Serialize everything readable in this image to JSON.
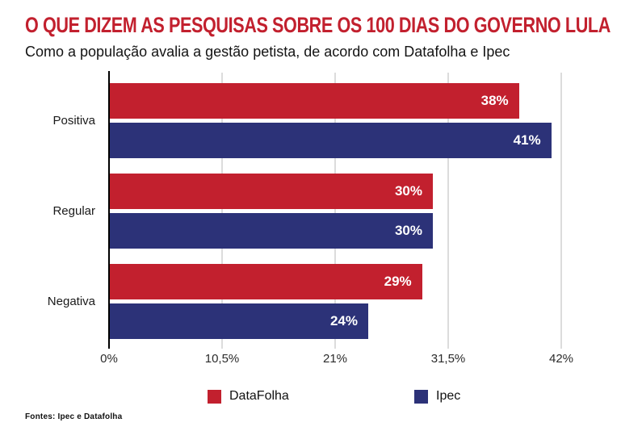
{
  "header": {
    "title": "O QUE DIZEM AS PESQUISAS SOBRE OS 100 DIAS DO GOVERNO LULA",
    "subtitle": "Como a população avalia a gestão petista, de acordo com Datafolha e Ipec"
  },
  "chart_data": {
    "type": "bar",
    "orientation": "horizontal",
    "title": "O QUE DIZEM AS PESQUISAS SOBRE OS 100 DIAS DO GOVERNO LULA",
    "subtitle": "Como a população avalia a gestão petista, de acordo com Datafolha e Ipec",
    "categories": [
      "Positiva",
      "Regular",
      "Negativa"
    ],
    "series": [
      {
        "name": "DataFolha",
        "color": "#c2202e",
        "values": [
          38,
          30,
          29
        ],
        "labels": [
          "38%",
          "30%",
          "29%"
        ]
      },
      {
        "name": "Ipec",
        "color": "#2c3278",
        "values": [
          41,
          30,
          24
        ],
        "labels": [
          "41%",
          "30%",
          "24%"
        ]
      }
    ],
    "x_axis": {
      "ticks": [
        "0%",
        "10,5%",
        "21%",
        "31,5%",
        "42%"
      ],
      "min": 0,
      "max": 42
    },
    "grid": true,
    "legend_position": "bottom"
  },
  "footer": {
    "source": "Fontes: Ipec e Datafolha"
  },
  "colors": {
    "title_red": "#c2202e",
    "datafolha_red": "#c2202e",
    "ipec_blue": "#2c3278",
    "gridline": "#dcdcdc",
    "axis": "#000000"
  }
}
